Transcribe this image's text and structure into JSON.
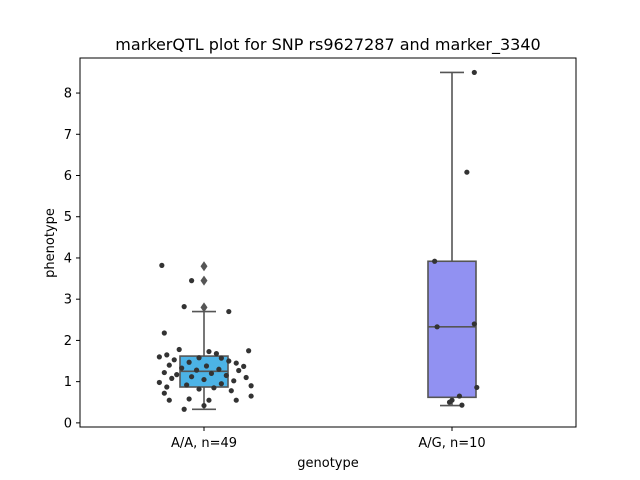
{
  "chart_data": {
    "type": "box",
    "title": "markerQTL plot for SNP rs9627287 and marker_3340",
    "xlabel": "genotype",
    "ylabel": "phenotype",
    "ylim": [
      -0.1,
      8.85
    ],
    "yticks": [
      0,
      1,
      2,
      3,
      4,
      5,
      6,
      7,
      8
    ],
    "categories": [
      "A/A, n=49",
      "A/G, n=10"
    ],
    "colors": [
      "#4cb3e6",
      "#9191f2"
    ],
    "line_color": "#555555",
    "point_color": "#333333",
    "boxes": [
      {
        "category": "A/A, n=49",
        "q1": 0.87,
        "median": 1.25,
        "q3": 1.62,
        "whisker_low": 0.33,
        "whisker_high": 2.7,
        "outliers": [
          2.8,
          3.45,
          3.8
        ],
        "points": [
          [
            -0.17,
            3.82
          ],
          [
            -0.05,
            3.45
          ],
          [
            -0.08,
            2.82
          ],
          [
            0.1,
            2.7
          ],
          [
            -0.16,
            2.18
          ],
          [
            -0.15,
            1.65
          ],
          [
            -0.1,
            1.78
          ],
          [
            0.02,
            1.73
          ],
          [
            0.05,
            1.68
          ],
          [
            0.18,
            1.75
          ],
          [
            -0.18,
            1.6
          ],
          [
            -0.02,
            1.58
          ],
          [
            0.07,
            1.57
          ],
          [
            -0.12,
            1.53
          ],
          [
            0.1,
            1.5
          ],
          [
            -0.06,
            1.47
          ],
          [
            0.13,
            1.45
          ],
          [
            -0.14,
            1.4
          ],
          [
            0.01,
            1.38
          ],
          [
            0.16,
            1.37
          ],
          [
            -0.09,
            1.33
          ],
          [
            0.06,
            1.3
          ],
          [
            -0.03,
            1.28
          ],
          [
            0.14,
            1.27
          ],
          [
            -0.16,
            1.22
          ],
          [
            0.03,
            1.2
          ],
          [
            -0.11,
            1.17
          ],
          [
            0.09,
            1.15
          ],
          [
            -0.05,
            1.12
          ],
          [
            0.17,
            1.1
          ],
          [
            -0.13,
            1.08
          ],
          [
            0.0,
            1.05
          ],
          [
            0.12,
            1.02
          ],
          [
            -0.18,
            0.98
          ],
          [
            0.07,
            0.95
          ],
          [
            -0.07,
            0.92
          ],
          [
            0.19,
            0.9
          ],
          [
            -0.15,
            0.87
          ],
          [
            0.04,
            0.85
          ],
          [
            -0.02,
            0.82
          ],
          [
            0.11,
            0.78
          ],
          [
            -0.16,
            0.72
          ],
          [
            0.19,
            0.65
          ],
          [
            -0.06,
            0.58
          ],
          [
            0.02,
            0.55
          ],
          [
            -0.14,
            0.55
          ],
          [
            0.13,
            0.55
          ],
          [
            0.0,
            0.42
          ],
          [
            -0.08,
            0.33
          ]
        ]
      },
      {
        "category": "A/G, n=10",
        "q1": 0.62,
        "median": 2.33,
        "q3": 3.92,
        "whisker_low": 0.42,
        "whisker_high": 8.5,
        "outliers": [],
        "points": [
          [
            0.09,
            8.5
          ],
          [
            0.06,
            6.08
          ],
          [
            -0.07,
            3.92
          ],
          [
            -0.06,
            2.33
          ],
          [
            0.09,
            2.4
          ],
          [
            0.1,
            0.86
          ],
          [
            0.03,
            0.65
          ],
          [
            0.0,
            0.55
          ],
          [
            -0.01,
            0.5
          ],
          [
            0.04,
            0.43
          ]
        ]
      }
    ]
  }
}
